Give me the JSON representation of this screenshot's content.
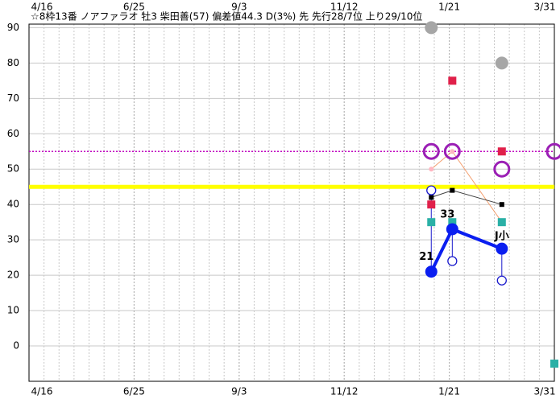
{
  "chart_data": {
    "type": "scatter",
    "title": "☆8枠13番 ノアファラオ 牡3 柴田善(57) 偏差値44.3 D(3%) 先 先行28/7位 上り29/10位",
    "xlim": [
      0,
      350
    ],
    "xticks": [
      {
        "value": 0,
        "label": "4/16"
      },
      {
        "value": 70,
        "label": "6/25"
      },
      {
        "value": 140,
        "label": "9/3"
      },
      {
        "value": 210,
        "label": "11/12"
      },
      {
        "value": 280,
        "label": "1/21"
      },
      {
        "value": 350,
        "label": "3/31"
      }
    ],
    "x_grid_interval": 10,
    "ylim": [
      -10,
      91
    ],
    "yticks": [
      0,
      10,
      20,
      30,
      40,
      50,
      60,
      70,
      80,
      90
    ],
    "grid": true,
    "reference_lines": [
      {
        "value": 45,
        "color": "#ffff00",
        "style": "solid"
      },
      {
        "value": 55,
        "color": "#c000c0",
        "style": "dotted"
      }
    ],
    "series": [
      {
        "marker": "circle",
        "color": "#a6a6a6",
        "x": [
          268,
          315
        ],
        "values": [
          90,
          80
        ]
      },
      {
        "marker": "square",
        "color": "#e0204a",
        "x": [
          282,
          268,
          315
        ],
        "values": [
          75,
          40,
          55
        ]
      },
      {
        "marker": "ring",
        "color": "#9b1fb5",
        "x": [
          268,
          282,
          350,
          315
        ],
        "values": [
          55,
          55,
          55,
          50
        ]
      },
      {
        "marker": "dot",
        "color": "#ffb6c1",
        "line_color": "#f4a070",
        "x": [
          268,
          282,
          315
        ],
        "values": [
          50,
          55,
          35
        ]
      },
      {
        "marker": "smallsquare",
        "color": "#000000",
        "line_color": "#404040",
        "x": [
          268,
          282,
          315
        ],
        "values": [
          42,
          44,
          40
        ]
      },
      {
        "marker": "square",
        "color": "#2ab0a6",
        "x": [
          268,
          282,
          315,
          350
        ],
        "values": [
          35,
          35,
          35,
          -5
        ]
      },
      {
        "marker": "smallring",
        "color": "#1a1acc",
        "stems_from": 7,
        "x": [
          268,
          282,
          315
        ],
        "values": [
          44,
          24,
          18.5
        ]
      },
      {
        "marker": "bigdot",
        "color": "#0a1ef0",
        "line_color": "#0a1ef0",
        "x": [
          268,
          282,
          315
        ],
        "values": [
          21,
          33,
          27.5
        ],
        "value_labels": [
          "21",
          "33",
          null
        ]
      }
    ],
    "annotations": [
      {
        "text": "J小",
        "x": 315,
        "y": 31
      }
    ]
  }
}
